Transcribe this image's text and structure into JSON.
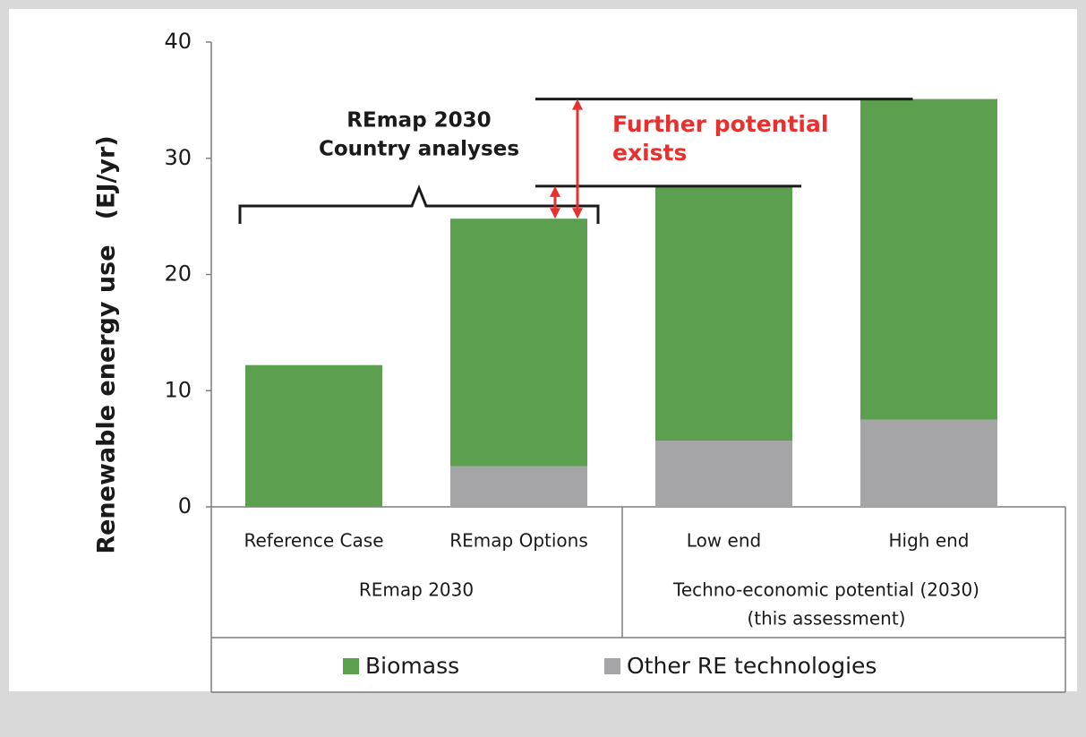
{
  "chart_data": {
    "type": "stacked_bar",
    "y_label": "Renewable energy use   (EJ/yr)",
    "categories": [
      "Reference Case",
      "REmap Options",
      "Low end",
      "High end"
    ],
    "groups": [
      {
        "lines": [
          "REmap 2030"
        ]
      },
      {
        "lines": [
          "Techno-economic potential (2030)",
          "(this assessment)"
        ]
      }
    ],
    "series": [
      {
        "name": "Other RE technologies",
        "color": "#a5a5a8",
        "values": [
          0,
          3.5,
          5.7,
          7.5
        ]
      },
      {
        "name": "Biomass",
        "color": "#5b9f4f",
        "values": [
          12.2,
          21.3,
          21.9,
          27.6
        ]
      }
    ],
    "legend_order": [
      1,
      0
    ],
    "ylim": [
      0,
      40
    ],
    "yticks": [
      0,
      10,
      20,
      30,
      40
    ],
    "annotations": [
      {
        "lines": [
          "REmap 2030",
          "Country analyses"
        ],
        "color": "#1a1a1a"
      },
      {
        "lines": [
          "Further potential",
          "exists"
        ],
        "color": "#e8312f"
      }
    ]
  }
}
